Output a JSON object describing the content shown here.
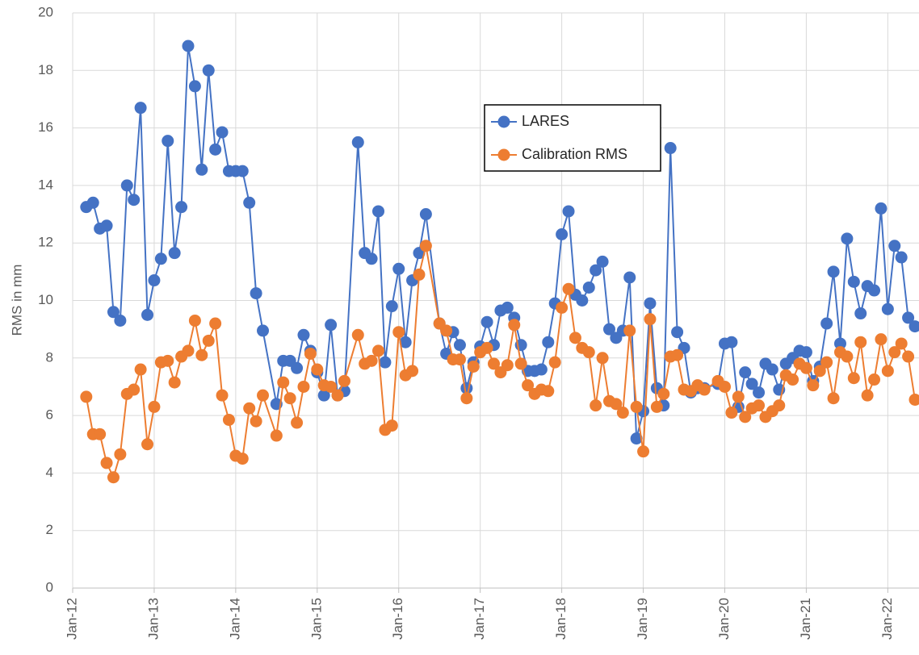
{
  "chart_data": {
    "type": "line",
    "y_label": "RMS in mm",
    "x": [
      "2012-03",
      "2012-04",
      "2012-05",
      "2012-06",
      "2012-07",
      "2012-08",
      "2012-09",
      "2012-10",
      "2012-11",
      "2012-12",
      "2013-01",
      "2013-02",
      "2013-03",
      "2013-04",
      "2013-05",
      "2013-06",
      "2013-07",
      "2013-08",
      "2013-09",
      "2013-10",
      "2013-11",
      "2013-12",
      "2014-01",
      "2014-02",
      "2014-03",
      "2014-04",
      "2014-05",
      "2014-07",
      "2014-08",
      "2014-09",
      "2014-10",
      "2014-11",
      "2014-12",
      "2015-01",
      "2015-02",
      "2015-03",
      "2015-04",
      "2015-05",
      "2015-07",
      "2015-08",
      "2015-09",
      "2015-10",
      "2015-11",
      "2015-12",
      "2016-01",
      "2016-02",
      "2016-03",
      "2016-04",
      "2016-05",
      "2016-07",
      "2016-08",
      "2016-09",
      "2016-10",
      "2016-11",
      "2016-12",
      "2017-01",
      "2017-02",
      "2017-03",
      "2017-04",
      "2017-05",
      "2017-06",
      "2017-07",
      "2017-08",
      "2017-09",
      "2017-10",
      "2017-11",
      "2017-12",
      "2018-01",
      "2018-02",
      "2018-03",
      "2018-04",
      "2018-05",
      "2018-06",
      "2018-07",
      "2018-08",
      "2018-09",
      "2018-10",
      "2018-11",
      "2018-12",
      "2019-01",
      "2019-02",
      "2019-03",
      "2019-04",
      "2019-05",
      "2019-06",
      "2019-07",
      "2019-08",
      "2019-09",
      "2019-10",
      "2019-12",
      "2020-01",
      "2020-02",
      "2020-03",
      "2020-04",
      "2020-05",
      "2020-06",
      "2020-07",
      "2020-08",
      "2020-09",
      "2020-10",
      "2020-11",
      "2020-12",
      "2021-01",
      "2021-02",
      "2021-03",
      "2021-04",
      "2021-05",
      "2021-06",
      "2021-07",
      "2021-08",
      "2021-09",
      "2021-10",
      "2021-11",
      "2021-12",
      "2022-01",
      "2022-02",
      "2022-03",
      "2022-04",
      "2022-05"
    ],
    "series": [
      {
        "name": "LARES",
        "color": "#4472c4",
        "values": [
          13.25,
          13.4,
          12.5,
          12.6,
          9.6,
          9.3,
          14.0,
          13.5,
          16.7,
          9.5,
          10.7,
          11.45,
          15.55,
          11.65,
          13.25,
          18.85,
          17.45,
          14.55,
          18.0,
          15.25,
          15.85,
          14.5,
          14.5,
          14.5,
          13.4,
          10.25,
          8.95,
          6.4,
          7.9,
          7.9,
          7.65,
          8.8,
          8.25,
          7.5,
          6.7,
          9.15,
          6.7,
          6.85,
          15.5,
          11.65,
          11.45,
          13.1,
          7.85,
          9.8,
          11.1,
          8.55,
          10.7,
          11.65,
          13.0,
          9.2,
          8.15,
          8.9,
          8.45,
          6.95,
          7.85,
          8.4,
          9.25,
          8.45,
          9.65,
          9.75,
          9.4,
          8.45,
          7.55,
          7.55,
          7.6,
          8.55,
          9.9,
          12.3,
          13.1,
          10.2,
          10.0,
          10.45,
          11.05,
          11.35,
          9.0,
          8.7,
          8.95,
          10.8,
          5.2,
          6.15,
          9.9,
          6.95,
          6.35,
          15.3,
          8.9,
          8.35,
          6.8,
          6.95,
          6.95,
          7.1,
          8.5,
          8.55,
          6.3,
          7.5,
          7.1,
          6.8,
          7.8,
          7.6,
          6.9,
          7.8,
          8.0,
          8.25,
          8.2,
          7.2,
          7.7,
          9.2,
          11.0,
          8.5,
          12.15,
          10.65,
          9.55,
          10.5,
          10.35,
          13.2,
          9.7,
          11.9,
          11.5,
          9.4,
          9.1
        ]
      },
      {
        "name": "Calibration RMS",
        "color": "#ed7d31",
        "values": [
          6.65,
          5.35,
          5.35,
          4.35,
          3.85,
          4.65,
          6.75,
          6.9,
          7.6,
          5.0,
          6.3,
          7.85,
          7.9,
          7.15,
          8.05,
          8.25,
          9.3,
          8.1,
          8.6,
          9.2,
          6.7,
          5.85,
          4.6,
          4.5,
          6.25,
          5.8,
          6.7,
          5.3,
          7.15,
          6.6,
          5.75,
          7.0,
          8.15,
          7.6,
          7.05,
          7.0,
          6.7,
          7.2,
          8.8,
          7.8,
          7.9,
          8.25,
          5.5,
          5.65,
          8.9,
          7.4,
          7.55,
          10.9,
          11.9,
          9.2,
          8.95,
          7.95,
          7.95,
          6.6,
          7.7,
          8.2,
          8.35,
          7.8,
          7.5,
          7.75,
          9.15,
          7.8,
          7.05,
          6.75,
          6.9,
          6.85,
          7.85,
          9.75,
          10.4,
          8.7,
          8.35,
          8.2,
          6.35,
          8.0,
          6.5,
          6.4,
          6.1,
          8.95,
          6.3,
          4.75,
          9.35,
          6.3,
          6.75,
          8.05,
          8.1,
          6.9,
          6.85,
          7.05,
          6.9,
          7.2,
          7.0,
          6.1,
          6.65,
          5.95,
          6.25,
          6.35,
          5.95,
          6.15,
          6.35,
          7.4,
          7.25,
          7.8,
          7.65,
          7.05,
          7.55,
          7.85,
          6.6,
          8.2,
          8.05,
          7.3,
          8.55,
          6.7,
          7.25,
          8.65,
          7.55,
          8.2,
          8.5,
          8.05,
          6.55
        ]
      }
    ],
    "xlim": [
      "2012-01",
      "2022-05"
    ],
    "xticks": [
      {
        "value": "2012-01",
        "label": "Jan-12"
      },
      {
        "value": "2013-01",
        "label": "Jan-13"
      },
      {
        "value": "2014-01",
        "label": "Jan-14"
      },
      {
        "value": "2015-01",
        "label": "Jan-15"
      },
      {
        "value": "2016-01",
        "label": "Jan-16"
      },
      {
        "value": "2017-01",
        "label": "Jan-17"
      },
      {
        "value": "2018-01",
        "label": "Jan-18"
      },
      {
        "value": "2019-01",
        "label": "Jan-19"
      },
      {
        "value": "2020-01",
        "label": "Jan-20"
      },
      {
        "value": "2021-01",
        "label": "Jan-21"
      },
      {
        "value": "2022-01",
        "label": "Jan-22"
      }
    ],
    "ylim": [
      0,
      20
    ],
    "yticks": [
      0,
      2,
      4,
      6,
      8,
      10,
      12,
      14,
      16,
      18,
      20
    ],
    "grid": true,
    "legend": "top-center"
  }
}
